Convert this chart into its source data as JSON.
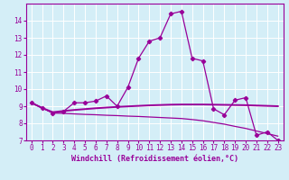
{
  "xlabel": "Windchill (Refroidissement éolien,°C)",
  "x": [
    0,
    1,
    2,
    3,
    4,
    5,
    6,
    7,
    8,
    9,
    10,
    11,
    12,
    13,
    14,
    15,
    16,
    17,
    18,
    19,
    20,
    21,
    22,
    23
  ],
  "line1": [
    9.2,
    8.9,
    8.6,
    8.7,
    9.2,
    9.2,
    9.3,
    9.6,
    9.0,
    10.1,
    11.8,
    12.8,
    13.0,
    14.4,
    14.55,
    11.8,
    11.65,
    8.85,
    8.5,
    9.35,
    9.5,
    7.3,
    7.5,
    7.0
  ],
  "line2": [
    9.2,
    8.9,
    8.65,
    8.72,
    8.78,
    8.83,
    8.88,
    8.92,
    8.96,
    8.99,
    9.02,
    9.05,
    9.07,
    9.09,
    9.1,
    9.1,
    9.1,
    9.09,
    9.08,
    9.07,
    9.06,
    9.04,
    9.02,
    9.0
  ],
  "line3": [
    9.2,
    8.9,
    8.6,
    8.58,
    8.55,
    8.52,
    8.5,
    8.47,
    8.45,
    8.42,
    8.4,
    8.37,
    8.34,
    8.31,
    8.28,
    8.22,
    8.15,
    8.05,
    7.95,
    7.82,
    7.7,
    7.55,
    7.4,
    7.25
  ],
  "line_color": "#990099",
  "bg_color": "#d4eef7",
  "grid_color": "#b0d8e8",
  "ylim": [
    7,
    15
  ],
  "yticks": [
    7,
    8,
    9,
    10,
    11,
    12,
    13,
    14
  ],
  "xlim": [
    -0.5,
    23.5
  ],
  "xticks": [
    0,
    1,
    2,
    3,
    4,
    5,
    6,
    7,
    8,
    9,
    10,
    11,
    12,
    13,
    14,
    15,
    16,
    17,
    18,
    19,
    20,
    21,
    22,
    23
  ]
}
